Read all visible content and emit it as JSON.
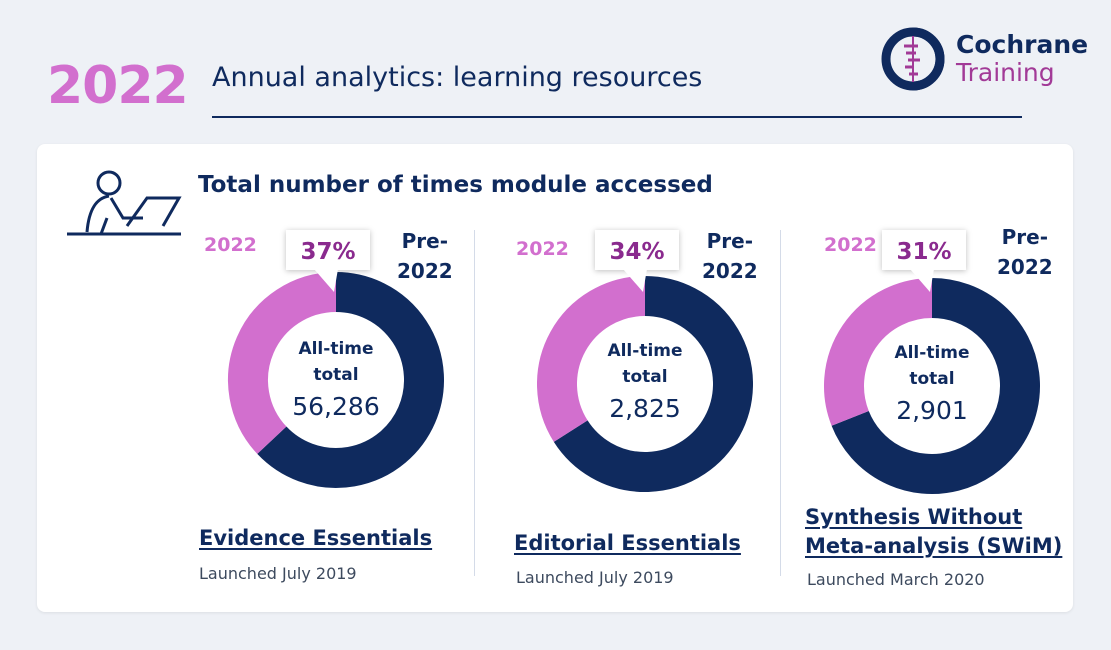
{
  "header": {
    "year": "2022",
    "title": "Annual analytics: learning resources"
  },
  "logo": {
    "line1": "Cochrane",
    "line2": "Training"
  },
  "colors": {
    "pink": "#d26fce",
    "navy": "#0f2a5e",
    "callout_text": "#8a2a8e"
  },
  "card": {
    "icon": "person-at-laptop-icon",
    "heading": "Total number of times module accessed"
  },
  "labels": {
    "current": "2022",
    "previous": "Pre-2022",
    "previous_line1": "Pre-",
    "previous_line2": "2022"
  },
  "chart_data": [
    {
      "type": "pie",
      "title": "Evidence Essentials",
      "subtitle": "Launched July 2019",
      "series": [
        {
          "name": "2022",
          "percent": 37
        },
        {
          "name": "Pre-2022",
          "percent": 63
        }
      ],
      "callout": "37%",
      "center_label": "All-time total",
      "center_line1": "All-time",
      "center_line2": "total",
      "center_value": "56,286",
      "total": 56286
    },
    {
      "type": "pie",
      "title": "Editorial Essentials",
      "subtitle": "Launched July 2019",
      "series": [
        {
          "name": "2022",
          "percent": 34
        },
        {
          "name": "Pre-2022",
          "percent": 66
        }
      ],
      "callout": "34%",
      "center_label": "All-time total",
      "center_line1": "All-time",
      "center_line2": "total",
      "center_value": "2,825",
      "total": 2825
    },
    {
      "type": "pie",
      "title": "Synthesis Without Meta-analysis (SWiM)",
      "title_line1": "Synthesis Without",
      "title_line2": "Meta-analysis (SWiM)",
      "subtitle": "Launched March 2020",
      "series": [
        {
          "name": "2022",
          "percent": 31
        },
        {
          "name": "Pre-2022",
          "percent": 69
        }
      ],
      "callout": "31%",
      "center_label": "All-time total",
      "center_line1": "All-time",
      "center_line2": "total",
      "center_value": "2,901",
      "total": 2901
    }
  ]
}
